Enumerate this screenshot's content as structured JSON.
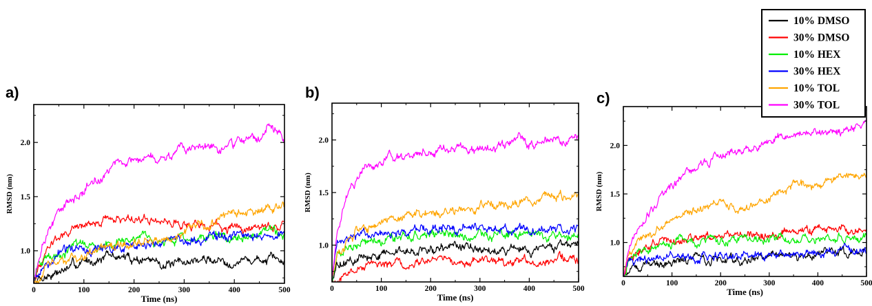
{
  "legend": {
    "entries": [
      {
        "label": "10% DMSO",
        "color": "#000000"
      },
      {
        "label": "30% DMSO",
        "color": "#ff0000"
      },
      {
        "label": "10% HEX",
        "color": "#00ee00"
      },
      {
        "label": "30% HEX",
        "color": "#0000ff"
      },
      {
        "label": "10% TOL",
        "color": "#ffa500"
      },
      {
        "label": "30% TOL",
        "color": "#ff00ff"
      }
    ]
  },
  "chart_data": [
    {
      "type": "line",
      "panel_label": "a)",
      "xlabel": "Time (ns)",
      "ylabel": "RMSD (nm)",
      "xlim": [
        0,
        500
      ],
      "ylim": [
        0.7,
        2.35
      ],
      "x_ticks": [
        0,
        100,
        200,
        300,
        400,
        500
      ],
      "y_ticks": [
        1.0,
        1.5,
        2.0
      ],
      "y_tick_labels": [
        "1.0",
        "1.5",
        "2.0"
      ],
      "grid": false,
      "series": [
        {
          "name": "10% DMSO",
          "color": "#000000",
          "x": [
            0,
            10,
            30,
            60,
            100,
            150,
            200,
            250,
            280,
            300,
            350,
            400,
            450,
            500
          ],
          "y": [
            0.7,
            0.75,
            0.78,
            0.82,
            0.9,
            0.95,
            0.93,
            0.9,
            0.85,
            0.9,
            0.92,
            0.9,
            0.92,
            0.9
          ]
        },
        {
          "name": "30% DMSO",
          "color": "#ff0000",
          "x": [
            0,
            10,
            30,
            60,
            100,
            150,
            200,
            250,
            300,
            350,
            400,
            450,
            500
          ],
          "y": [
            0.7,
            0.85,
            1.05,
            1.15,
            1.25,
            1.3,
            1.3,
            1.28,
            1.25,
            1.22,
            1.2,
            1.22,
            1.24
          ]
        },
        {
          "name": "10% HEX",
          "color": "#00ee00",
          "x": [
            0,
            10,
            30,
            60,
            100,
            150,
            200,
            250,
            300,
            350,
            400,
            450,
            500
          ],
          "y": [
            0.7,
            0.85,
            0.95,
            1.0,
            1.05,
            1.07,
            1.08,
            1.1,
            1.1,
            1.12,
            1.12,
            1.15,
            1.17
          ]
        },
        {
          "name": "30% HEX",
          "color": "#0000ff",
          "x": [
            0,
            10,
            30,
            60,
            100,
            150,
            200,
            250,
            300,
            350,
            400,
            450,
            500
          ],
          "y": [
            0.7,
            0.8,
            0.9,
            1.0,
            1.0,
            1.02,
            1.05,
            1.08,
            1.1,
            1.12,
            1.13,
            1.15,
            1.15
          ]
        },
        {
          "name": "10% TOL",
          "color": "#ffa500",
          "x": [
            0,
            10,
            30,
            60,
            100,
            150,
            200,
            250,
            300,
            350,
            400,
            450,
            500
          ],
          "y": [
            0.7,
            0.75,
            0.85,
            0.9,
            0.95,
            1.02,
            1.05,
            1.1,
            1.18,
            1.25,
            1.32,
            1.38,
            1.43
          ]
        },
        {
          "name": "30% TOL",
          "color": "#ff00ff",
          "x": [
            0,
            10,
            30,
            60,
            100,
            150,
            200,
            250,
            300,
            350,
            400,
            450,
            470,
            500
          ],
          "y": [
            0.7,
            0.95,
            1.2,
            1.4,
            1.55,
            1.75,
            1.85,
            1.85,
            1.92,
            1.95,
            1.98,
            2.05,
            2.15,
            2.05
          ]
        }
      ]
    },
    {
      "type": "line",
      "panel_label": "b)",
      "xlabel": "Time (ns)",
      "ylabel": "RMSD (nm)",
      "xlim": [
        0,
        500
      ],
      "ylim": [
        0.65,
        2.35
      ],
      "x_ticks": [
        0,
        100,
        200,
        300,
        400,
        500
      ],
      "y_ticks": [
        1.0,
        1.5,
        2.0
      ],
      "y_tick_labels": [
        "1.0",
        "1.5",
        "2.0"
      ],
      "grid": false,
      "series": [
        {
          "name": "10% DMSO",
          "color": "#000000",
          "x": [
            0,
            10,
            30,
            60,
            100,
            150,
            200,
            250,
            300,
            350,
            400,
            450,
            500
          ],
          "y": [
            0.65,
            0.8,
            0.85,
            0.88,
            0.92,
            0.95,
            0.97,
            1.0,
            0.97,
            0.95,
            0.97,
            0.98,
            1.02
          ]
        },
        {
          "name": "30% DMSO",
          "color": "#ff0000",
          "x": [
            0,
            10,
            30,
            60,
            100,
            150,
            200,
            250,
            300,
            350,
            400,
            450,
            500
          ],
          "y": [
            0.65,
            0.68,
            0.72,
            0.78,
            0.82,
            0.84,
            0.86,
            0.85,
            0.84,
            0.83,
            0.85,
            0.87,
            0.88
          ]
        },
        {
          "name": "10% HEX",
          "color": "#00ee00",
          "x": [
            0,
            10,
            30,
            60,
            100,
            150,
            200,
            250,
            300,
            350,
            400,
            450,
            500
          ],
          "y": [
            0.65,
            0.9,
            1.0,
            1.02,
            1.05,
            1.07,
            1.08,
            1.1,
            1.1,
            1.1,
            1.1,
            1.1,
            1.1
          ]
        },
        {
          "name": "30% HEX",
          "color": "#0000ff",
          "x": [
            0,
            10,
            30,
            60,
            100,
            150,
            200,
            250,
            300,
            350,
            400,
            450,
            500
          ],
          "y": [
            0.65,
            1.0,
            1.05,
            1.1,
            1.12,
            1.13,
            1.15,
            1.15,
            1.15,
            1.15,
            1.14,
            1.14,
            1.15
          ]
        },
        {
          "name": "10% TOL",
          "color": "#ffa500",
          "x": [
            0,
            10,
            30,
            60,
            100,
            150,
            200,
            250,
            300,
            350,
            400,
            450,
            500
          ],
          "y": [
            0.65,
            0.9,
            1.05,
            1.15,
            1.25,
            1.28,
            1.3,
            1.33,
            1.35,
            1.38,
            1.42,
            1.45,
            1.48
          ]
        },
        {
          "name": "30% TOL",
          "color": "#ff00ff",
          "x": [
            0,
            10,
            30,
            60,
            100,
            150,
            200,
            250,
            300,
            350,
            380,
            400,
            450,
            500
          ],
          "y": [
            0.65,
            1.1,
            1.5,
            1.7,
            1.8,
            1.85,
            1.9,
            1.92,
            1.92,
            1.95,
            2.05,
            1.95,
            2.0,
            2.0
          ]
        }
      ]
    },
    {
      "type": "line",
      "panel_label": "c)",
      "xlabel": "Time (ns)",
      "ylabel": "RMSD (nm)",
      "xlim": [
        0,
        500
      ],
      "ylim": [
        0.65,
        2.4
      ],
      "x_ticks": [
        0,
        100,
        200,
        300,
        400,
        500
      ],
      "y_ticks": [
        1.0,
        1.5,
        2.0
      ],
      "y_tick_labels": [
        "1.0",
        "1.5",
        "2.0"
      ],
      "grid": false,
      "series": [
        {
          "name": "10% DMSO",
          "color": "#000000",
          "x": [
            0,
            10,
            30,
            60,
            100,
            150,
            200,
            250,
            300,
            350,
            400,
            450,
            500
          ],
          "y": [
            0.65,
            0.72,
            0.75,
            0.78,
            0.8,
            0.82,
            0.83,
            0.84,
            0.85,
            0.87,
            0.88,
            0.9,
            0.92
          ]
        },
        {
          "name": "30% DMSO",
          "color": "#ff0000",
          "x": [
            0,
            10,
            30,
            60,
            100,
            150,
            200,
            250,
            300,
            350,
            400,
            450,
            500
          ],
          "y": [
            0.65,
            0.8,
            0.9,
            1.0,
            1.02,
            1.03,
            1.05,
            1.05,
            1.08,
            1.1,
            1.12,
            1.15,
            1.12
          ]
        },
        {
          "name": "10% HEX",
          "color": "#00ee00",
          "x": [
            0,
            10,
            30,
            60,
            100,
            120,
            150,
            200,
            250,
            300,
            350,
            400,
            450,
            500
          ],
          "y": [
            0.65,
            0.8,
            0.88,
            0.92,
            0.98,
            1.08,
            1.0,
            1.02,
            1.03,
            1.03,
            1.05,
            1.05,
            1.05,
            1.06
          ]
        },
        {
          "name": "30% HEX",
          "color": "#0000ff",
          "x": [
            0,
            10,
            30,
            60,
            100,
            150,
            200,
            250,
            300,
            350,
            400,
            450,
            500
          ],
          "y": [
            0.65,
            0.8,
            0.83,
            0.84,
            0.85,
            0.85,
            0.86,
            0.86,
            0.87,
            0.88,
            0.9,
            0.92,
            0.93
          ]
        },
        {
          "name": "10% TOL",
          "color": "#ffa500",
          "x": [
            0,
            10,
            30,
            60,
            100,
            150,
            200,
            250,
            300,
            350,
            400,
            450,
            500
          ],
          "y": [
            0.65,
            0.85,
            1.0,
            1.1,
            1.25,
            1.35,
            1.4,
            1.32,
            1.45,
            1.6,
            1.6,
            1.65,
            1.72
          ]
        },
        {
          "name": "30% TOL",
          "color": "#ff00ff",
          "x": [
            0,
            10,
            30,
            60,
            100,
            150,
            200,
            250,
            300,
            350,
            400,
            450,
            500
          ],
          "y": [
            0.65,
            0.9,
            1.15,
            1.35,
            1.6,
            1.75,
            1.9,
            1.95,
            2.05,
            2.12,
            2.15,
            2.12,
            2.25
          ]
        }
      ]
    }
  ]
}
